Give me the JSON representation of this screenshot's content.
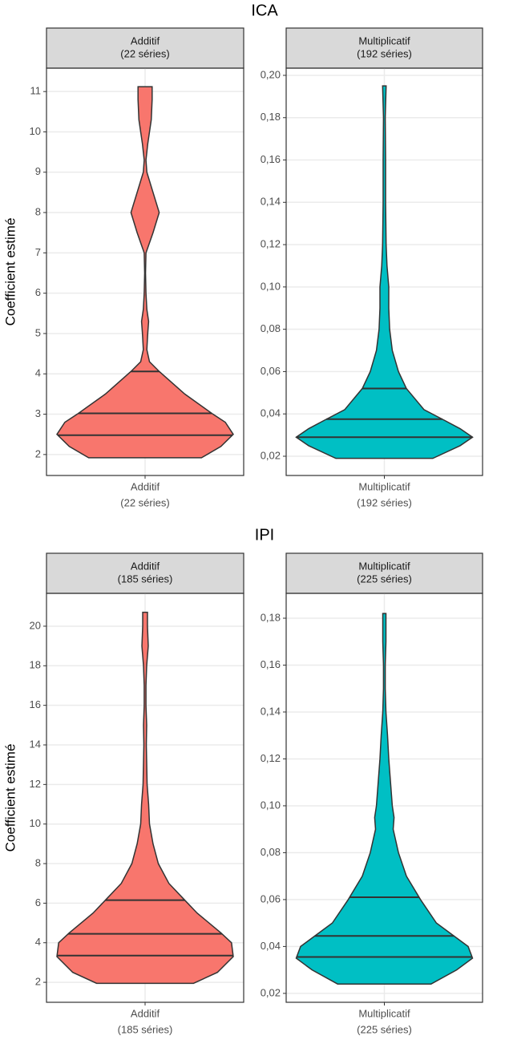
{
  "chart_data": [
    {
      "type": "violin",
      "title": "ICA",
      "ylabel": "Coefficient estimé",
      "grid": true,
      "facets": [
        {
          "strip": [
            "Additif",
            "(22 séries)"
          ],
          "color": "#f8766d",
          "ylim": [
            1.48,
            11.58
          ],
          "yticks": [
            2,
            3,
            4,
            5,
            6,
            7,
            8,
            9,
            10,
            11
          ],
          "y": [
            1.92,
            2.2,
            2.5,
            2.8,
            3.0,
            3.5,
            4.06,
            4.3,
            4.6,
            5.0,
            5.3,
            5.6,
            6.0,
            6.5,
            7.0,
            7.5,
            8.0,
            8.5,
            9.0,
            9.3,
            9.7,
            10.3,
            10.8,
            11.12
          ],
          "width": [
            0.64,
            0.86,
            1,
            0.91,
            0.77,
            0.45,
            0.16,
            0.05,
            0.02,
            0.03,
            0.04,
            0.02,
            0.01,
            0.005,
            0.01,
            0.09,
            0.16,
            0.09,
            0.02,
            0.01,
            0.03,
            0.07,
            0.08,
            0.08
          ],
          "quantiles": [
            2.48,
            3.02,
            4.06
          ]
        },
        {
          "strip": [
            "Multiplicatif",
            "(192 séries)"
          ],
          "color": "#00bfc4",
          "ylim": [
            0.0109,
            0.2034
          ],
          "yticks": [
            {
              "value": 0.02,
              "label": "0,02"
            },
            {
              "value": 0.04,
              "label": "0,04"
            },
            {
              "value": 0.06,
              "label": "0,06"
            },
            {
              "value": 0.08,
              "label": "0,08"
            },
            {
              "value": 0.1,
              "label": "0,10"
            },
            {
              "value": 0.12,
              "label": "0,12"
            },
            {
              "value": 0.14,
              "label": "0,14"
            },
            {
              "value": 0.16,
              "label": "0,16"
            },
            {
              "value": 0.18,
              "label": "0,18"
            },
            {
              "value": 0.2,
              "label": "0,20"
            }
          ],
          "y": [
            0.019,
            0.025,
            0.029,
            0.033,
            0.037,
            0.042,
            0.052,
            0.06,
            0.07,
            0.08,
            0.09,
            0.1,
            0.11,
            0.12,
            0.14,
            0.16,
            0.18,
            0.195
          ],
          "width": [
            0.55,
            0.86,
            1,
            0.86,
            0.68,
            0.45,
            0.25,
            0.16,
            0.09,
            0.06,
            0.05,
            0.05,
            0.03,
            0.02,
            0.014,
            0.014,
            0.01,
            0.02
          ],
          "quantiles": [
            0.029,
            0.0375,
            0.052
          ]
        }
      ]
    },
    {
      "type": "violin",
      "title": "IPI",
      "ylabel": "Coefficient estimé",
      "grid": true,
      "facets": [
        {
          "strip": [
            "Additif",
            "(185 séries)"
          ],
          "color": "#f8766d",
          "ylim": [
            0.99,
            21.66
          ],
          "yticks": [
            2,
            4,
            6,
            8,
            10,
            12,
            14,
            16,
            18,
            20
          ],
          "y": [
            1.95,
            2.5,
            3.3,
            4.0,
            4.5,
            5.5,
            6.2,
            7.0,
            8.0,
            9.0,
            10.0,
            11.0,
            12.0,
            14.0,
            15.0,
            16.0,
            17.0,
            18.0,
            19.0,
            20.0,
            20.7
          ],
          "width": [
            0.55,
            0.82,
            1,
            0.98,
            0.86,
            0.59,
            0.44,
            0.27,
            0.15,
            0.09,
            0.05,
            0.04,
            0.023,
            0.014,
            0.018,
            0.01,
            0.01,
            0.018,
            0.036,
            0.027,
            0.027
          ],
          "quantiles": [
            3.35,
            4.45,
            6.15
          ]
        },
        {
          "strip": [
            "Multiplicatif",
            "(225 séries)"
          ],
          "color": "#00bfc4",
          "ylim": [
            0.0162,
            0.1906
          ],
          "yticks": [
            {
              "value": 0.02,
              "label": "0,02"
            },
            {
              "value": 0.04,
              "label": "0,04"
            },
            {
              "value": 0.06,
              "label": "0,06"
            },
            {
              "value": 0.08,
              "label": "0,08"
            },
            {
              "value": 0.1,
              "label": "0,10"
            },
            {
              "value": 0.12,
              "label": "0,12"
            },
            {
              "value": 0.14,
              "label": "0,14"
            },
            {
              "value": 0.16,
              "label": "0,16"
            },
            {
              "value": 0.18,
              "label": "0,18"
            }
          ],
          "y": [
            0.024,
            0.03,
            0.035,
            0.04,
            0.045,
            0.05,
            0.06,
            0.07,
            0.08,
            0.09,
            0.095,
            0.1,
            0.11,
            0.12,
            0.13,
            0.14,
            0.15,
            0.16,
            0.17,
            0.182
          ],
          "width": [
            0.53,
            0.82,
            1,
            0.95,
            0.77,
            0.59,
            0.41,
            0.25,
            0.16,
            0.1,
            0.11,
            0.09,
            0.07,
            0.05,
            0.036,
            0.018,
            0.01,
            0.01,
            0.018,
            0.018
          ],
          "quantiles": [
            0.0355,
            0.0445,
            0.061
          ]
        }
      ]
    }
  ]
}
